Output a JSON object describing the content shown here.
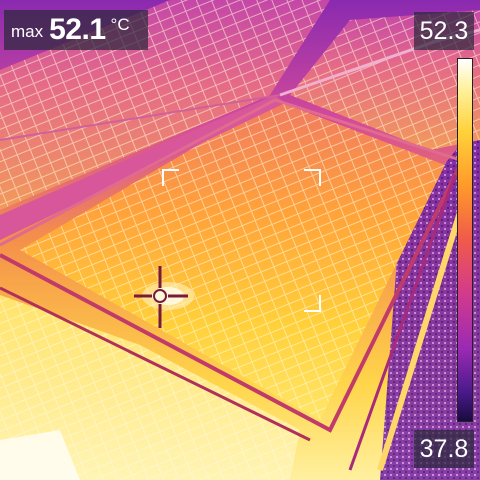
{
  "header": {
    "max_label": "max",
    "max_value": "52.1",
    "unit": "°C"
  },
  "scale": {
    "max": "52.3",
    "min": "37.8"
  },
  "palette": {
    "hot": "#fff6b0",
    "warm": "#ffb23a",
    "mid": "#f25a78",
    "cool": "#b83ab8",
    "cold": "#5a1a8a"
  },
  "icons": {
    "crosshair": "crosshair-icon",
    "focus_brackets": "focus-bracket-icon"
  }
}
